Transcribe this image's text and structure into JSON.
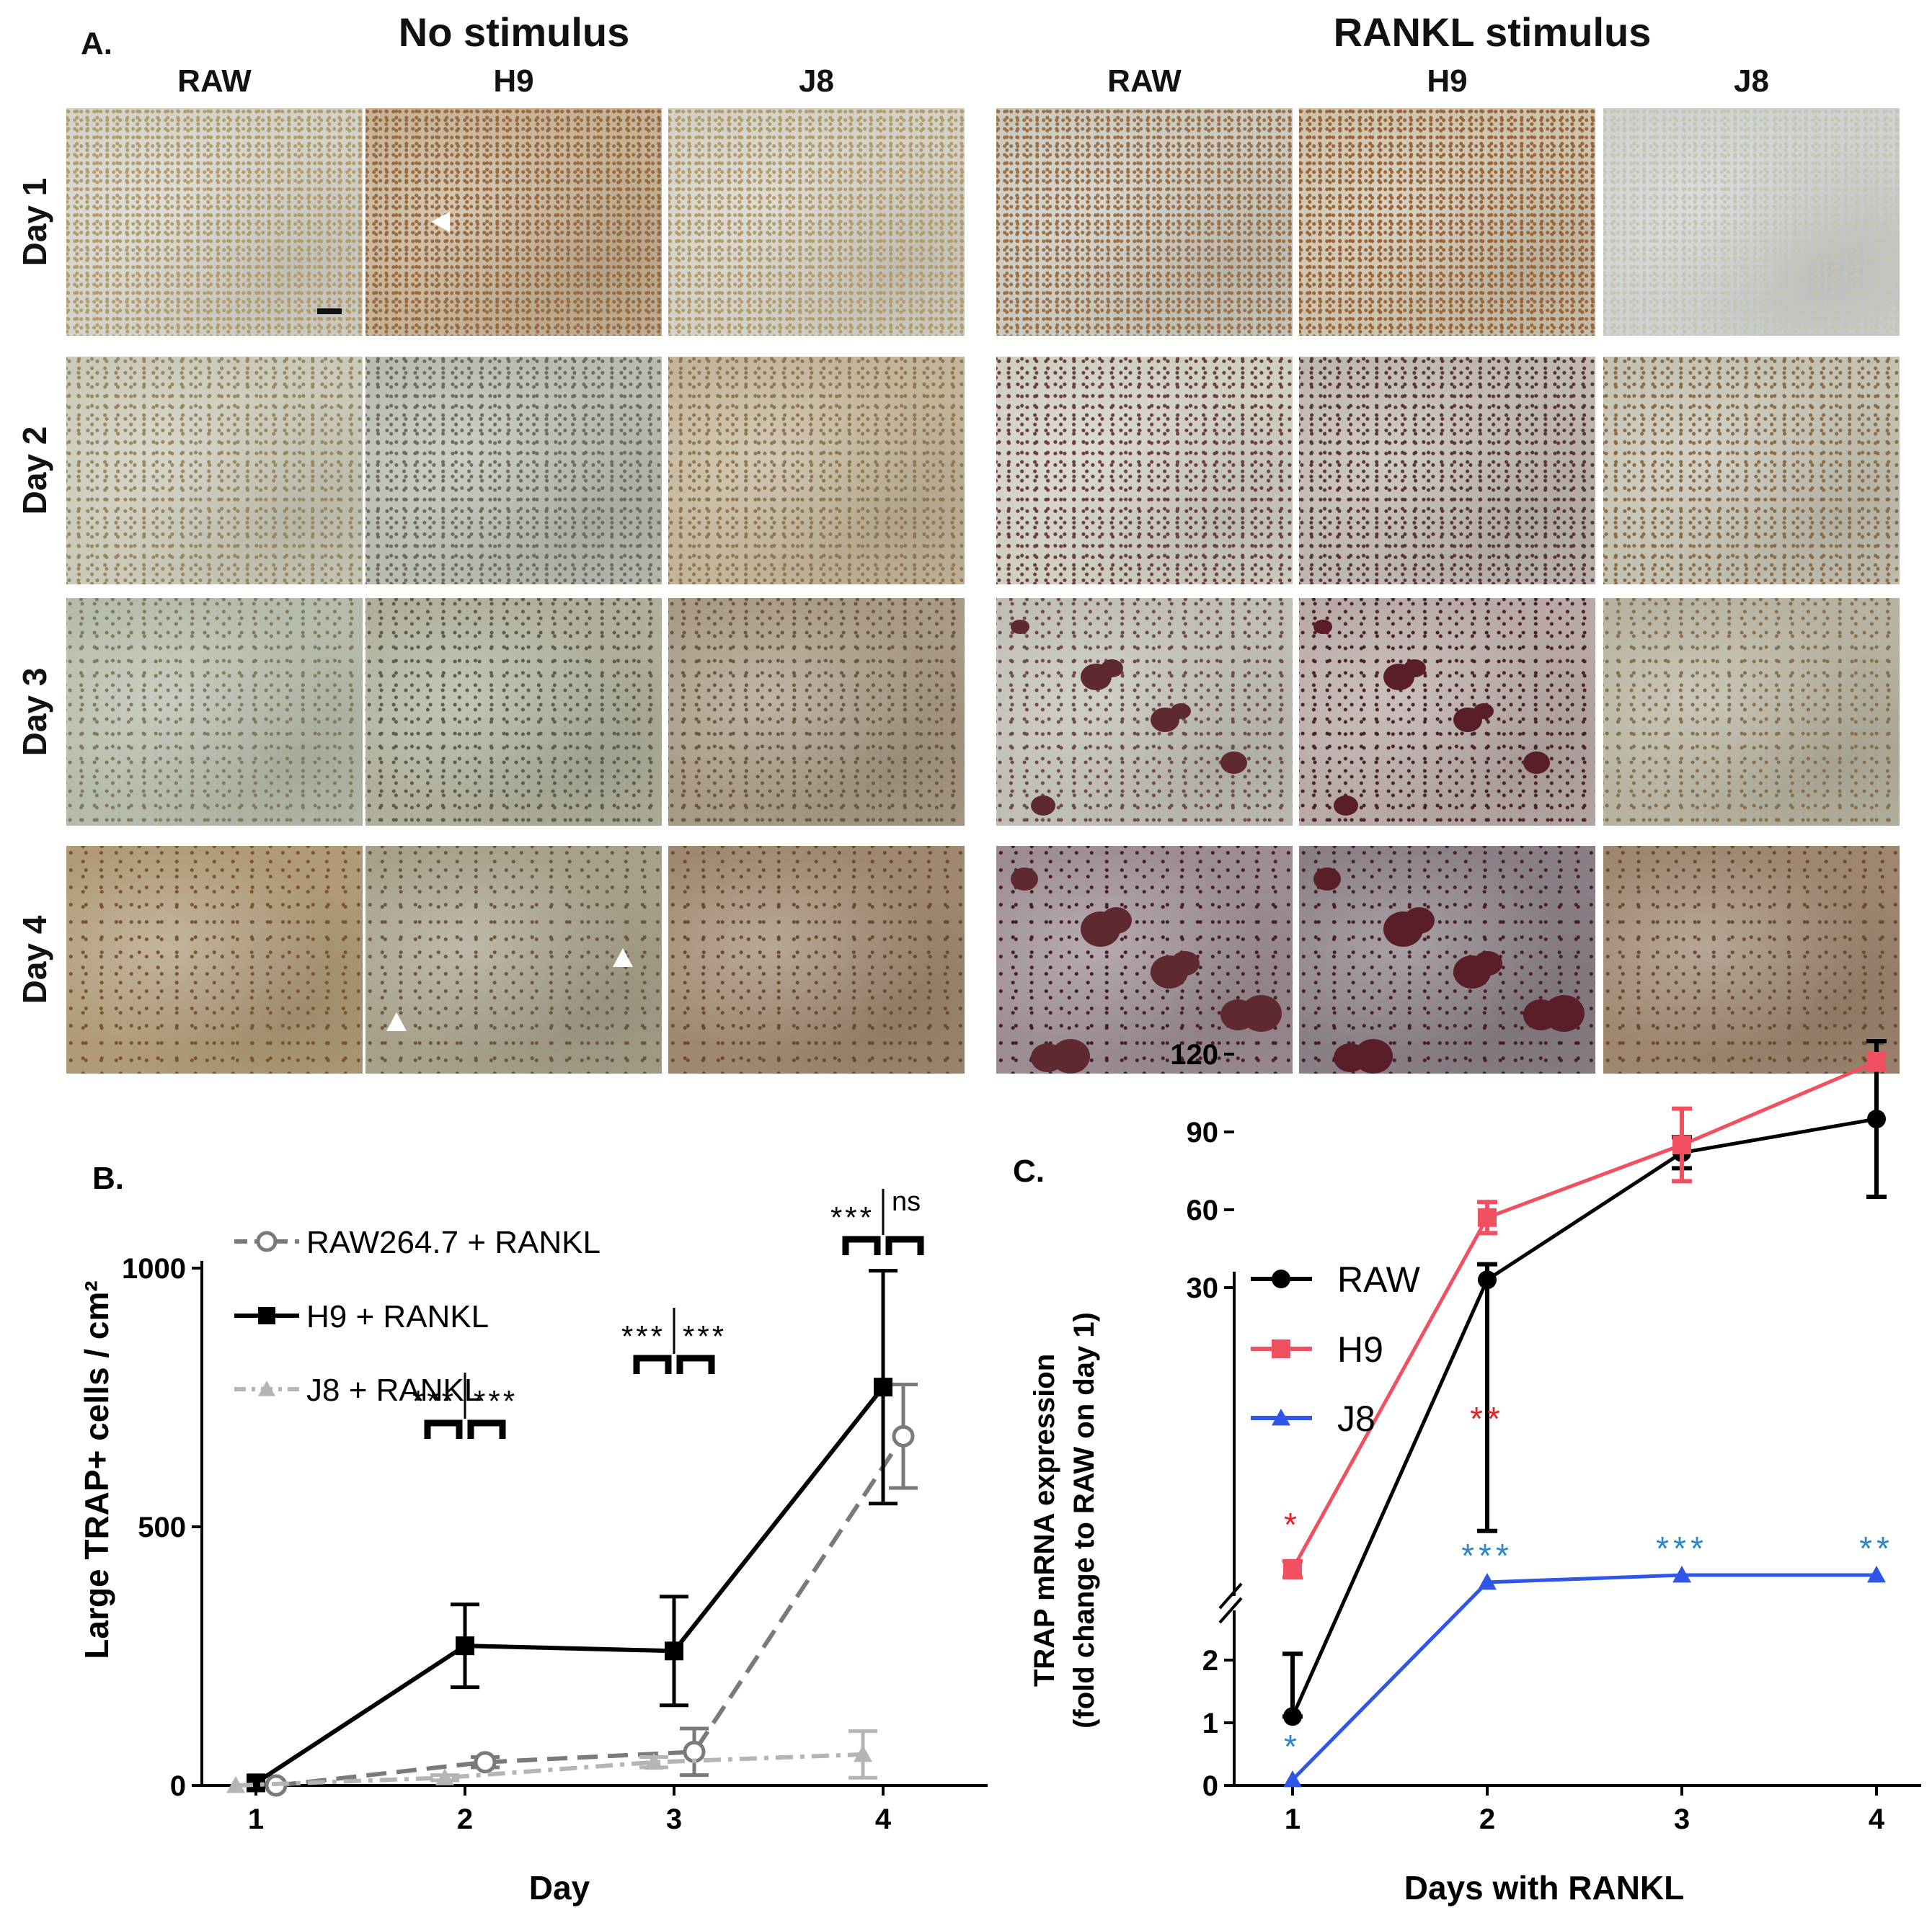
{
  "panel_a": {
    "letter": "A.",
    "groups": [
      "No stimulus",
      "RANKL stimulus"
    ],
    "columns": [
      "RAW",
      "H9",
      "J8",
      "RAW",
      "H9",
      "J8"
    ],
    "rows": [
      "Day 1",
      "Day 2",
      "Day 3",
      "Day 4"
    ]
  },
  "chart_data": [
    {
      "type": "line",
      "panel": "B.",
      "xlabel": "Day",
      "ylabel": "Large TRAP+ cells / cm²",
      "x": [
        1,
        2,
        3,
        4
      ],
      "xticks": [
        "1",
        "2",
        "3",
        "4"
      ],
      "yticks": [
        "0",
        "500",
        "1000"
      ],
      "ylim": [
        0,
        1000
      ],
      "legend": "top-left",
      "series": [
        {
          "name": "RAW264.7 + RANKL",
          "color": "#7a7a7a",
          "marker": "circle-open",
          "dash": "dashed",
          "values": [
            0,
            45,
            65,
            675
          ],
          "err": [
            0,
            10,
            45,
            100
          ]
        },
        {
          "name": "H9 + RANKL",
          "color": "#000000",
          "marker": "square",
          "dash": "solid",
          "values": [
            5,
            270,
            260,
            770
          ],
          "err": [
            0,
            80,
            105,
            225
          ]
        },
        {
          "name": "J8 + RANKL",
          "color": "#b5b5b5",
          "marker": "triangle",
          "dash": "dashdot",
          "values": [
            0,
            15,
            45,
            60
          ],
          "err": [
            0,
            5,
            10,
            45
          ]
        }
      ],
      "significance": [
        {
          "x": 2,
          "left": "***",
          "right": "***"
        },
        {
          "x": 3,
          "left": "***",
          "right": "***"
        },
        {
          "x": 4,
          "left": "***",
          "right": "ns"
        }
      ]
    },
    {
      "type": "line",
      "panel": "C.",
      "xlabel": "Days with RANKL",
      "ylabel": [
        "TRAP mRNA expression",
        "(fold change to RAW on day 1)"
      ],
      "x": [
        1,
        2,
        3,
        4
      ],
      "xticks": [
        "1",
        "2",
        "3",
        "4"
      ],
      "yticks_lower": [
        "0",
        "1",
        "2"
      ],
      "yticks_upper": [
        "30",
        "60",
        "90",
        "120"
      ],
      "axis_break": true,
      "legend": "top-left",
      "series": [
        {
          "name": "RAW",
          "color": "#000000",
          "marker": "circle",
          "values": [
            1.1,
            33,
            82,
            95
          ],
          "err": [
            1.0,
            6,
            6,
            30
          ]
        },
        {
          "name": "H9",
          "color": "#f0505f",
          "marker": "square",
          "values": [
            8,
            57,
            85,
            117
          ],
          "err": [
            4,
            6,
            14,
            3
          ]
        },
        {
          "name": "J8",
          "color": "#2f56e8",
          "marker": "triangle",
          "values": [
            0.1,
            3,
            6,
            6
          ],
          "err": [
            0,
            0,
            0,
            0
          ]
        }
      ],
      "significance": [
        {
          "x": 1,
          "label": "*",
          "series": "H9",
          "color": "#e8202a"
        },
        {
          "x": 2,
          "label": "**",
          "series": "H9",
          "color": "#e8202a"
        },
        {
          "x": 1,
          "label": "*",
          "series": "J8",
          "color": "#2a86c8"
        },
        {
          "x": 2,
          "label": "***",
          "series": "J8",
          "color": "#2a86c8"
        },
        {
          "x": 3,
          "label": "***",
          "series": "J8",
          "color": "#2a86c8"
        },
        {
          "x": 4,
          "label": "**",
          "series": "J8",
          "color": "#2a86c8"
        }
      ]
    }
  ]
}
